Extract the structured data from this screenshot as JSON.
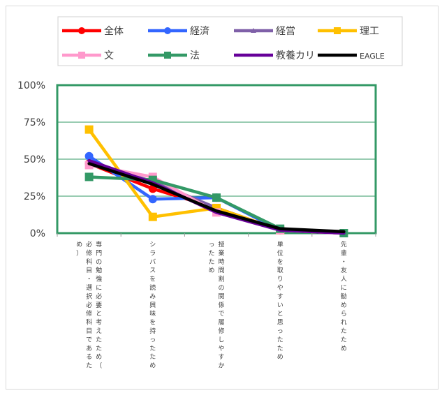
{
  "chart_data": {
    "type": "line",
    "title": "",
    "xlabel": "",
    "ylabel": "",
    "ylim": [
      0,
      100
    ],
    "yticks": [
      "0%",
      "25%",
      "50%",
      "75%",
      "100%"
    ],
    "categories": [
      "専門の勉強に必要と考えたため（必修科目・選択必修科目であるため）",
      "シラバスを読み興味を持ったため",
      "授業時間割の関係で履修しやすかったため",
      "単位を取りやすいと思ったため",
      "先輩・友人に勧められたため"
    ],
    "series": [
      {
        "name": "全体",
        "color": "#ff0000",
        "marker": "circle",
        "values": [
          47,
          30,
          17,
          2,
          0
        ]
      },
      {
        "name": "経済",
        "color": "#3366ff",
        "marker": "circle",
        "values": [
          52,
          23,
          24,
          2,
          0
        ]
      },
      {
        "name": "経営",
        "color": "#7f60a8",
        "marker": "triangle",
        "values": [
          47,
          35,
          17,
          2,
          0
        ]
      },
      {
        "name": "理工",
        "color": "#ffc000",
        "marker": "square",
        "values": [
          70,
          11,
          17,
          2,
          0
        ]
      },
      {
        "name": "文",
        "color": "#ff99cc",
        "marker": "square",
        "values": [
          46,
          38,
          14,
          2,
          0
        ]
      },
      {
        "name": "法",
        "color": "#339966",
        "marker": "square",
        "values": [
          38,
          36,
          24,
          3,
          0
        ]
      },
      {
        "name": "教養カリ",
        "color": "#660099",
        "marker": "none",
        "values": [
          49,
          34,
          14,
          2,
          0
        ]
      },
      {
        "name": "EAGLE",
        "color": "#000000",
        "marker": "none",
        "values": [
          47,
          33,
          15,
          3,
          1
        ]
      }
    ],
    "grid": true,
    "legend_position": "top"
  }
}
